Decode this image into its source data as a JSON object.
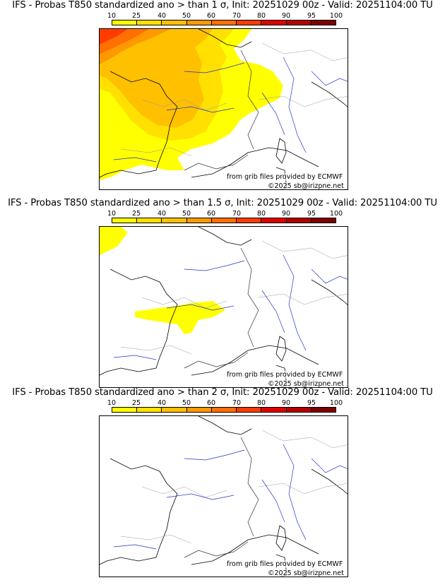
{
  "panels": [
    {
      "title": "IFS - Probas T850  standardized ano > than 1 σ, Init: 20251029 00z - Valid: 20251104:00 TU"
    },
    {
      "title": "IFS - Probas T850  standardized ano > than 1.5 σ, Init: 20251029 00z - Valid: 20251104:00 TU"
    },
    {
      "title": "IFS - Probas T850  standardized ano > than 2 σ, Init: 20251029 00z - Valid: 20251104:00 TU"
    }
  ],
  "colorbar": {
    "ticks": [
      "10",
      "25",
      "40",
      "50",
      "60",
      "70",
      "80",
      "90",
      "95",
      "100"
    ],
    "colors": [
      "#ffff00",
      "#ffe000",
      "#ffc000",
      "#ff9900",
      "#ff7000",
      "#ff3b00",
      "#e00000",
      "#b40000",
      "#800000"
    ]
  },
  "credits": {
    "source": "from grib files provided by ECMWF",
    "copyright": "©2025 sb@irizpne.net"
  }
}
